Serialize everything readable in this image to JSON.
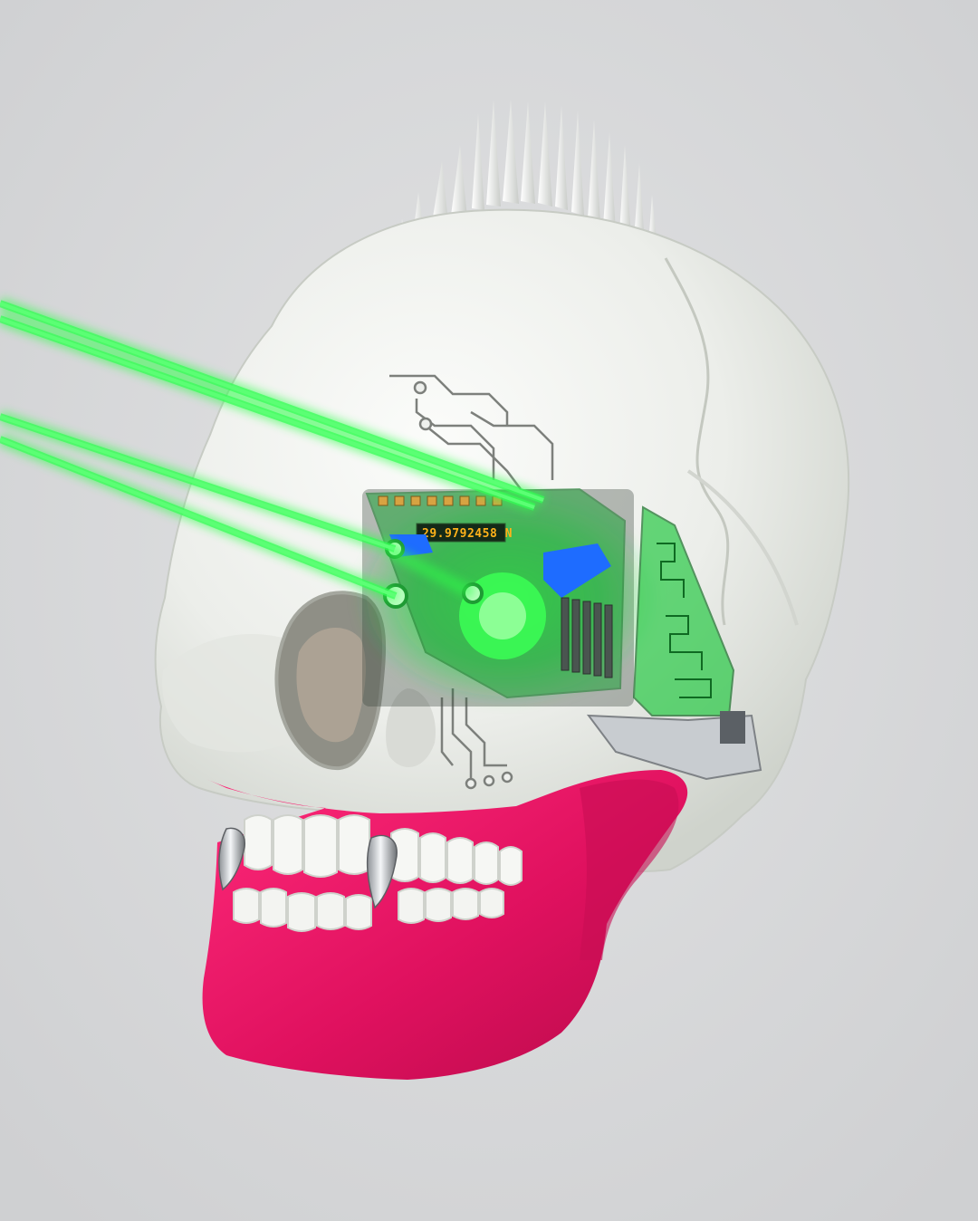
{
  "colors": {
    "background": "#d6d7d9",
    "bone": "#eef0ed",
    "bone_shadow": "#b9bdb7",
    "jaw": "#e0115f",
    "laser": "#2dff4a",
    "circuit": "#7d807c",
    "accent_blue": "#1e6cff",
    "chrome": "#c8ccd0",
    "readout_text": "#ffb21a"
  },
  "image": {
    "subject_icons": [
      "skull-icon",
      "laser-beam-icon",
      "circuit-board-icon",
      "spike-icon",
      "fang-icon"
    ]
  },
  "readout": {
    "text": "29.9792458 N"
  }
}
